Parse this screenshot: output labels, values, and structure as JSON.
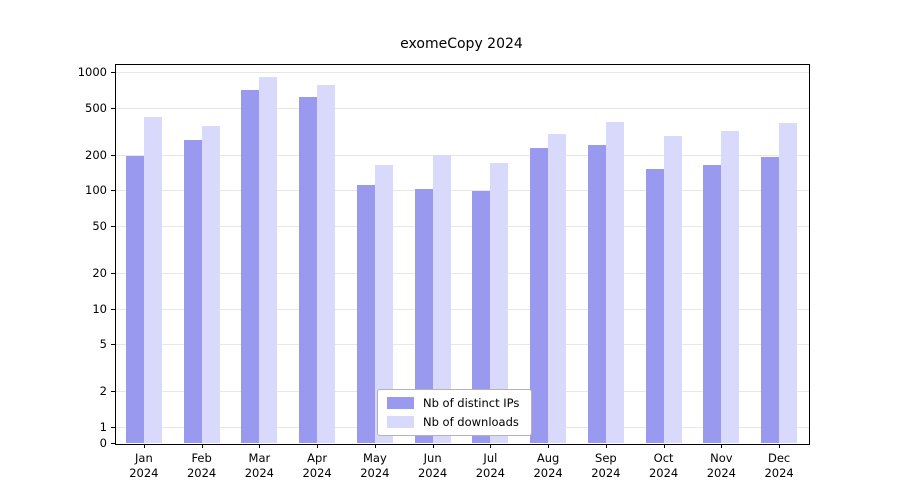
{
  "chart_data": {
    "type": "bar",
    "title": "exomeCopy 2024",
    "year": "2024",
    "months": [
      "Jan",
      "Feb",
      "Mar",
      "Apr",
      "May",
      "Jun",
      "Jul",
      "Aug",
      "Sep",
      "Oct",
      "Nov",
      "Dec"
    ],
    "yscale": "log",
    "yticks": [
      0,
      1,
      2,
      5,
      10,
      20,
      50,
      100,
      200,
      500,
      1000
    ],
    "ylim": [
      0,
      1000
    ],
    "grid": true,
    "legend_position": "bottom-center-inside",
    "series": [
      {
        "name": "Nb of distinct IPs",
        "color": "#9999f0",
        "values": [
          195,
          265,
          700,
          620,
          110,
          103,
          98,
          230,
          240,
          150,
          165,
          190
        ]
      },
      {
        "name": "Nb of downloads",
        "color": "#d9d9fb",
        "values": [
          420,
          350,
          900,
          780,
          165,
          200,
          170,
          300,
          380,
          290,
          320,
          370
        ]
      }
    ]
  }
}
